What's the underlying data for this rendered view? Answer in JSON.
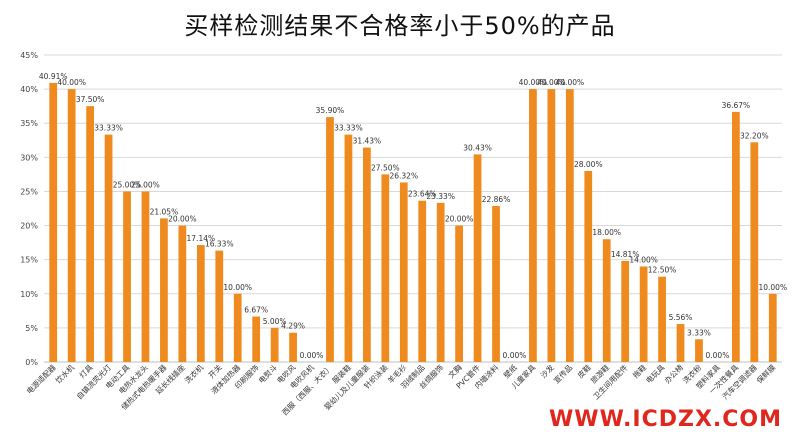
{
  "chart_data": {
    "type": "bar",
    "title": "买样检测结果不合格率小于50%的产品",
    "xlabel": "",
    "ylabel": "",
    "ylim": [
      0,
      45
    ],
    "ytick_step": 5,
    "grid": true,
    "bar_color": "#ef8a1e",
    "categories": [
      "电源适配器",
      "饮水机",
      "灯具",
      "自镇流荧光灯",
      "电动工具",
      "电热水龙头",
      "储热式电热暖手器",
      "延长线插座",
      "洗衣机",
      "开关",
      "液体加热器",
      "印刷服饰",
      "电熨斗",
      "电吹风",
      "电吹风机",
      "西服（西服、大衣）",
      "服装鞋",
      "婴幼儿及儿童服装",
      "针织泳装",
      "羊毛衫",
      "羽绒制品",
      "丝绸服饰",
      "文胸",
      "PVC管件",
      "内墙涂料",
      "壁纸",
      "儿童家具",
      "沙发",
      "宣传品",
      "皮鞋",
      "旅游鞋",
      "卫生间用配件",
      "拖鞋",
      "电玩具",
      "办公椅",
      "洗衣粉",
      "塑料家具",
      "一次性餐具",
      "汽车空调滤器",
      "保鲜膜"
    ],
    "values": [
      40.91,
      40.0,
      37.5,
      33.33,
      25.0,
      25.0,
      21.05,
      20.0,
      17.14,
      16.33,
      10.0,
      6.67,
      5.0,
      4.29,
      0.0,
      35.9,
      33.33,
      31.43,
      27.5,
      26.32,
      23.64,
      23.33,
      20.0,
      30.43,
      22.86,
      0.0,
      40.0,
      40.0,
      40.0,
      28.0,
      18.0,
      14.81,
      14.0,
      12.5,
      5.56,
      3.33,
      0.0,
      36.67,
      32.2,
      10.0
    ],
    "value_labels": [
      "40.91%",
      "40.00%",
      "37.50%",
      "33.33%",
      "25.00%",
      "25.00%",
      "21.05%",
      "20.00%",
      "17.14%",
      "16.33%",
      "10.00%",
      "6.67%",
      "5.00%",
      "4.29%",
      "0.00%",
      "35.90%",
      "33.33%",
      "31.43%",
      "27.50%",
      "26.32%",
      "23.64%",
      "23.33%",
      "20.00%",
      "30.43%",
      "22.86%",
      "0.00%",
      "40.00%",
      "40.00%",
      "40.00%",
      "28.00%",
      "18.00%",
      "14.81%",
      "14.00%",
      "12.50%",
      "5.56%",
      "3.33%",
      "0.00%",
      "36.67%",
      "32.20%",
      "10.00%"
    ],
    "y_tick_labels": [
      "0%",
      "5%",
      "10%",
      "15%",
      "20%",
      "25%",
      "30%",
      "35%",
      "40%",
      "45%"
    ]
  },
  "watermark": "WWW.ICDZX.COM"
}
